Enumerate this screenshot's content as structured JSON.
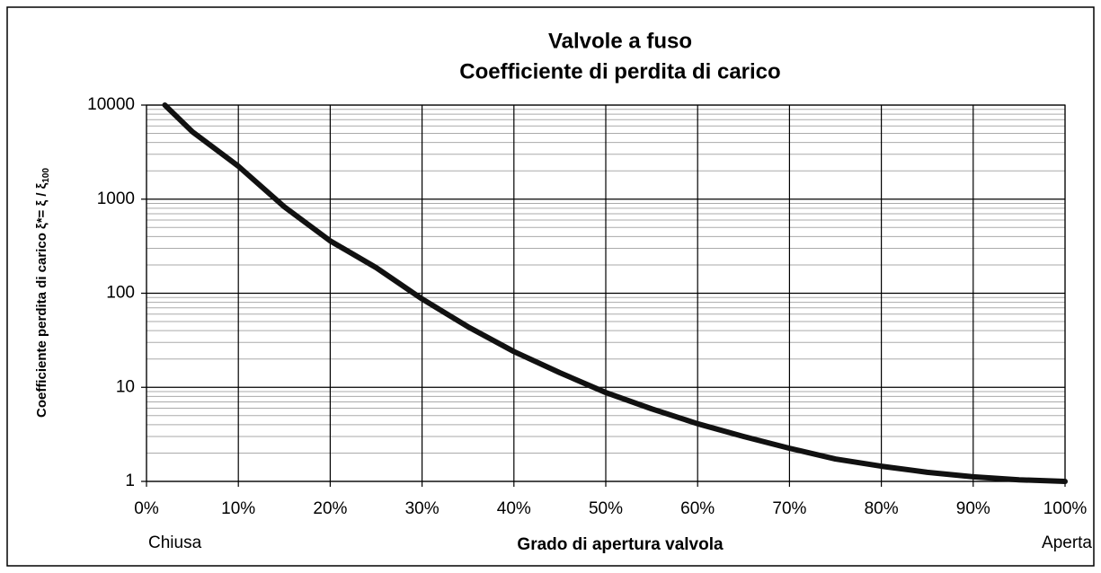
{
  "chart_data": {
    "type": "line",
    "title": "Valvole a fuso",
    "subtitle": "Coefficiente di perdita di carico",
    "x_label": "Grado di apertura valvola",
    "y_label": "Coefficiente perdita di carico ξ*= ξ / ξ",
    "y_label_subscript": "100",
    "annotations": [
      "Chiusa",
      "Aperta"
    ],
    "x": [
      2,
      5,
      10,
      15,
      20,
      25,
      30,
      35,
      40,
      45,
      50,
      55,
      60,
      65,
      70,
      75,
      80,
      85,
      90,
      95,
      100
    ],
    "series": [
      {
        "color": "#111111",
        "values": [
          10000,
          5200,
          2240,
          830,
          360,
          187,
          87,
          44,
          24,
          14.3,
          8.8,
          5.9,
          4.1,
          3.0,
          2.25,
          1.73,
          1.45,
          1.25,
          1.12,
          1.04,
          1
        ]
      }
    ],
    "xlim": [
      0,
      100
    ],
    "xticks": [
      {
        "value": 0,
        "label": "0%"
      },
      {
        "value": 10,
        "label": "10%"
      },
      {
        "value": 20,
        "label": "20%"
      },
      {
        "value": 30,
        "label": "30%"
      },
      {
        "value": 40,
        "label": "40%"
      },
      {
        "value": 50,
        "label": "50%"
      },
      {
        "value": 60,
        "label": "60%"
      },
      {
        "value": 70,
        "label": "70%"
      },
      {
        "value": 80,
        "label": "80%"
      },
      {
        "value": 90,
        "label": "90%"
      },
      {
        "value": 100,
        "label": "100%"
      }
    ],
    "ylim": [
      1,
      10000
    ],
    "yticks": [
      1,
      10,
      100,
      1000,
      10000
    ],
    "y_log": true,
    "grid": true,
    "minor_grid": true
  }
}
